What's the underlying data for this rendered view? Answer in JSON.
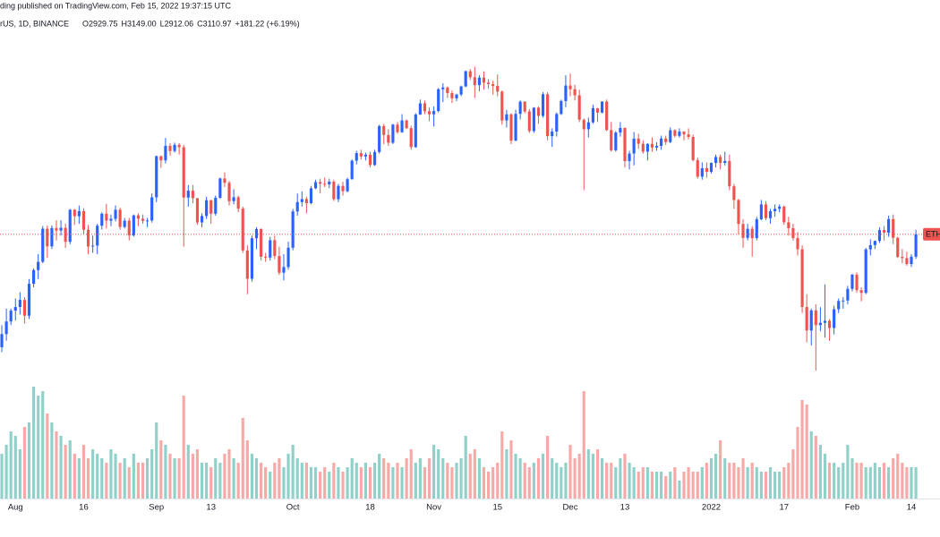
{
  "header": {
    "published": "ding published on TradingView.com, Feb 15, 2022 19:37:15 UTC",
    "symbol": "rUS, 1D, BINANCE",
    "ohlc": [
      "O2929.75",
      "H3149.00",
      "L2912.06",
      "C3110.97",
      "+181.22 (+6.19%)"
    ]
  },
  "chart_data": {
    "type": "candlestick",
    "log_scale": true,
    "price_label": "ETH",
    "up_color": "#2962ff",
    "down_color": "#ef5350",
    "volume_up_color": "#8fd1c9",
    "volume_down_color": "#f6a9a7",
    "ylim": [
      2130,
      5290
    ],
    "vlim": [
      0,
      140
    ],
    "xlim": [
      -0.4,
      206.3
    ],
    "xticks": [
      {
        "value": 3,
        "label": "Aug"
      },
      {
        "value": 18,
        "label": "16"
      },
      {
        "value": 34,
        "label": "Sep"
      },
      {
        "value": 46,
        "label": "13"
      },
      {
        "value": 64,
        "label": "Oct"
      },
      {
        "value": 81,
        "label": "18"
      },
      {
        "value": 95,
        "label": "Nov"
      },
      {
        "value": 109,
        "label": "15"
      },
      {
        "value": 125,
        "label": "Dec"
      },
      {
        "value": 137,
        "label": "13"
      },
      {
        "value": 156,
        "label": "2022"
      },
      {
        "value": 172,
        "label": "17"
      },
      {
        "value": 187,
        "label": "Feb"
      },
      {
        "value": 200,
        "label": "14"
      }
    ],
    "open": [
      2300,
      2382,
      2464,
      2536,
      2561,
      2610,
      2502,
      2725,
      2827,
      2890,
      3158,
      3012,
      3163,
      3142,
      3165,
      3049,
      3322,
      3265,
      3310,
      3149,
      3011,
      3018,
      3183,
      3287,
      3226,
      3242,
      3322,
      3173,
      3226,
      3102,
      3272,
      3243,
      3225,
      3228,
      3434,
      3834,
      3791,
      3941,
      3887,
      3952,
      3927,
      3432,
      3496,
      3426,
      3211,
      3267,
      3408,
      3287,
      3430,
      3612,
      3570,
      3399,
      3435,
      3332,
      2979,
      2762,
      3078,
      3155,
      2930,
      2923,
      3062,
      2935,
      2807,
      2850,
      3001,
      3307,
      3391,
      3418,
      3381,
      3518,
      3577,
      3561,
      3555,
      3581,
      3417,
      3541,
      3491,
      3605,
      3788,
      3865,
      3831,
      3849,
      3744,
      3877,
      4155,
      4057,
      3975,
      4171,
      4088,
      4218,
      4132,
      3928,
      4286,
      4416,
      4323,
      4288,
      4325,
      4586,
      4607,
      4538,
      4475,
      4521,
      4620,
      4812,
      4735,
      4636,
      4730,
      4667,
      4649,
      4627,
      4557,
      4218,
      4288,
      3996,
      4293,
      4436,
      4321,
      4100,
      4365,
      4270,
      4525,
      4045,
      4095,
      4292,
      4443,
      4631,
      4586,
      4512,
      4227,
      4120,
      4197,
      4359,
      4307,
      4437,
      4111,
      3895,
      4084,
      4134,
      3784,
      3861,
      4018,
      3963,
      3880,
      3961,
      3924,
      3941,
      4019,
      3981,
      4109,
      4048,
      4094,
      4064,
      4036,
      3794,
      3629,
      3712,
      3677,
      3765,
      3826,
      3765,
      3785,
      3537,
      3410,
      3198,
      3081,
      3157,
      3079,
      3239,
      3370,
      3248,
      3309,
      3330,
      3350,
      3212,
      3162,
      3080,
      2989,
      2561,
      2405,
      2538,
      2440,
      2455,
      2468,
      2421,
      2546,
      2603,
      2606,
      2688,
      2792,
      2679,
      2660,
      2988,
      3022,
      3056,
      3146,
      3124,
      3240,
      3082,
      2928,
      2919,
      2873,
      2929.75
    ],
    "high": [
      2440,
      2550,
      2550,
      2620,
      2665,
      2630,
      2760,
      2840,
      2950,
      3180,
      3185,
      3185,
      3230,
      3230,
      3200,
      3330,
      3330,
      3360,
      3335,
      3190,
      3100,
      3200,
      3300,
      3375,
      3280,
      3360,
      3340,
      3250,
      3250,
      3280,
      3290,
      3280,
      3250,
      3470,
      3840,
      3840,
      4025,
      3970,
      3975,
      3970,
      3950,
      3550,
      3550,
      3430,
      3290,
      3440,
      3410,
      3450,
      3620,
      3670,
      3590,
      3510,
      3450,
      3350,
      3020,
      3100,
      3170,
      3160,
      2960,
      3090,
      3100,
      3010,
      2950,
      3050,
      3330,
      3470,
      3490,
      3440,
      3540,
      3600,
      3610,
      3620,
      3610,
      3600,
      3560,
      3580,
      3620,
      3800,
      3890,
      3900,
      3870,
      3880,
      3900,
      4170,
      4180,
      4120,
      4180,
      4200,
      4290,
      4230,
      4160,
      4300,
      4460,
      4450,
      4370,
      4380,
      4600,
      4660,
      4620,
      4570,
      4530,
      4630,
      4820,
      4840,
      4868,
      4760,
      4810,
      4710,
      4690,
      4770,
      4570,
      4340,
      4300,
      4340,
      4450,
      4440,
      4350,
      4370,
      4380,
      4550,
      4550,
      4130,
      4310,
      4460,
      4760,
      4780,
      4640,
      4580,
      4240,
      4250,
      4400,
      4360,
      4440,
      4460,
      4200,
      4100,
      4200,
      4140,
      3890,
      4090,
      4070,
      4000,
      3970,
      4030,
      3980,
      4050,
      4050,
      4140,
      4120,
      4130,
      4100,
      4130,
      4060,
      3820,
      3770,
      3770,
      3770,
      3850,
      3850,
      3880,
      3850,
      3560,
      3420,
      3240,
      3200,
      3180,
      3260,
      3410,
      3400,
      3330,
      3370,
      3370,
      3360,
      3260,
      3200,
      3130,
      3020,
      2650,
      2550,
      2580,
      2560,
      2720,
      2480,
      2570,
      2620,
      2630,
      2710,
      2800,
      2810,
      2700,
      3000,
      3070,
      3060,
      3170,
      3180,
      3270,
      3280,
      3090,
      2990,
      2970,
      2950,
      3149
    ],
    "low": [
      2270,
      2340,
      2440,
      2470,
      2510,
      2450,
      2480,
      2700,
      2760,
      2880,
      2920,
      2990,
      3060,
      3100,
      3000,
      3030,
      3190,
      3200,
      3110,
      2950,
      2960,
      2950,
      3150,
      3160,
      3180,
      3220,
      3150,
      3160,
      3060,
      3090,
      3180,
      3200,
      3170,
      3210,
      3390,
      3715,
      3760,
      3840,
      3870,
      3850,
      3010,
      3350,
      3380,
      3190,
      3170,
      3240,
      3200,
      3270,
      3420,
      3530,
      3360,
      3370,
      3300,
      2960,
      2650,
      2740,
      2990,
      2900,
      2890,
      2900,
      2910,
      2790,
      2750,
      2830,
      2980,
      3270,
      3350,
      3290,
      3370,
      3510,
      3470,
      3530,
      3520,
      3400,
      3390,
      3450,
      3480,
      3600,
      3750,
      3800,
      3790,
      3720,
      3735,
      3860,
      3960,
      3940,
      3960,
      4070,
      4080,
      4120,
      3900,
      3920,
      4280,
      4290,
      4210,
      4150,
      4310,
      4430,
      4480,
      4420,
      4440,
      4500,
      4610,
      4700,
      4480,
      4560,
      4580,
      4590,
      4520,
      4500,
      4170,
      4140,
      3960,
      3990,
      4230,
      4300,
      4080,
      4080,
      4180,
      4250,
      4000,
      3930,
      4040,
      4280,
      4370,
      4500,
      4450,
      4200,
      3500,
      4030,
      4180,
      4200,
      4300,
      4100,
      3880,
      3880,
      4040,
      3720,
      3700,
      3740,
      3910,
      3860,
      3790,
      3880,
      3890,
      3900,
      3950,
      3970,
      4030,
      4030,
      4000,
      4010,
      3780,
      3610,
      3600,
      3620,
      3660,
      3720,
      3700,
      3740,
      3500,
      3330,
      3110,
      3000,
      3060,
      2930,
      3060,
      3230,
      3230,
      3200,
      3260,
      3300,
      3190,
      3100,
      3060,
      2940,
      2520,
      2330,
      2310,
      2160,
      2400,
      2360,
      2340,
      2380,
      2520,
      2550,
      2580,
      2670,
      2660,
      2600,
      2650,
      2940,
      2990,
      3040,
      3060,
      3090,
      3030,
      2920,
      2880,
      2860,
      2850,
      2912.06
    ],
    "close": [
      2382,
      2464,
      2536,
      2561,
      2610,
      2502,
      2725,
      2827,
      2890,
      3158,
      3012,
      3163,
      3142,
      3165,
      3049,
      3322,
      3265,
      3310,
      3149,
      3011,
      3018,
      3183,
      3287,
      3226,
      3242,
      3322,
      3173,
      3226,
      3102,
      3272,
      3243,
      3225,
      3228,
      3434,
      3834,
      3791,
      3941,
      3887,
      3952,
      3927,
      3432,
      3496,
      3426,
      3211,
      3267,
      3408,
      3287,
      3430,
      3612,
      3570,
      3399,
      3435,
      3332,
      2979,
      2762,
      3078,
      3155,
      2930,
      2923,
      3062,
      2935,
      2807,
      2850,
      3001,
      3307,
      3391,
      3418,
      3381,
      3518,
      3577,
      3561,
      3555,
      3581,
      3417,
      3541,
      3491,
      3605,
      3788,
      3865,
      3831,
      3849,
      3744,
      3877,
      4155,
      4057,
      3975,
      4171,
      4088,
      4218,
      4132,
      3928,
      4286,
      4416,
      4323,
      4288,
      4325,
      4586,
      4607,
      4538,
      4475,
      4521,
      4620,
      4812,
      4735,
      4636,
      4730,
      4667,
      4649,
      4627,
      4557,
      4218,
      4288,
      3996,
      4293,
      4436,
      4321,
      4100,
      4365,
      4270,
      4525,
      4045,
      4095,
      4292,
      4443,
      4631,
      4586,
      4512,
      4227,
      4120,
      4197,
      4359,
      4307,
      4437,
      4111,
      3895,
      4084,
      4134,
      3784,
      3861,
      4018,
      3963,
      3880,
      3961,
      3924,
      3941,
      4019,
      3981,
      4109,
      4048,
      4094,
      4064,
      4036,
      3794,
      3629,
      3712,
      3677,
      3765,
      3826,
      3765,
      3785,
      3537,
      3410,
      3198,
      3081,
      3157,
      3079,
      3239,
      3370,
      3248,
      3309,
      3330,
      3350,
      3212,
      3162,
      3080,
      2989,
      2561,
      2405,
      2538,
      2440,
      2455,
      2468,
      2421,
      2546,
      2603,
      2606,
      2688,
      2792,
      2679,
      2660,
      2988,
      3022,
      3056,
      3146,
      3124,
      3240,
      3082,
      2928,
      2919,
      2873,
      2930,
      3110.97
    ],
    "volume": [
      50,
      60,
      75,
      70,
      55,
      80,
      85,
      125,
      115,
      120,
      95,
      85,
      75,
      70,
      60,
      65,
      50,
      45,
      60,
      45,
      55,
      50,
      45,
      40,
      55,
      50,
      40,
      45,
      35,
      50,
      40,
      40,
      45,
      55,
      85,
      65,
      60,
      50,
      45,
      45,
      115,
      60,
      50,
      55,
      40,
      40,
      35,
      45,
      40,
      50,
      55,
      45,
      40,
      90,
      65,
      50,
      45,
      40,
      35,
      30,
      40,
      45,
      35,
      50,
      60,
      45,
      40,
      40,
      35,
      35,
      30,
      35,
      30,
      40,
      35,
      30,
      35,
      45,
      40,
      35,
      40,
      35,
      40,
      50,
      45,
      40,
      35,
      40,
      35,
      45,
      55,
      40,
      45,
      35,
      45,
      60,
      55,
      45,
      40,
      35,
      40,
      45,
      70,
      50,
      55,
      45,
      35,
      30,
      35,
      40,
      75,
      55,
      65,
      50,
      45,
      40,
      35,
      40,
      45,
      50,
      70,
      45,
      40,
      35,
      40,
      60,
      45,
      50,
      120,
      55,
      50,
      55,
      45,
      40,
      40,
      35,
      45,
      50,
      40,
      35,
      30,
      35,
      35,
      30,
      30,
      30,
      25,
      30,
      35,
      20,
      30,
      35,
      30,
      30,
      35,
      40,
      45,
      50,
      65,
      45,
      40,
      40,
      35,
      45,
      35,
      40,
      35,
      30,
      30,
      35,
      30,
      30,
      35,
      40,
      55,
      80,
      110,
      105,
      75,
      70,
      60,
      50,
      40,
      40,
      35,
      40,
      60,
      45,
      40,
      40,
      35,
      35,
      40,
      35,
      40,
      35,
      45,
      50,
      40,
      35,
      35,
      35
    ]
  }
}
